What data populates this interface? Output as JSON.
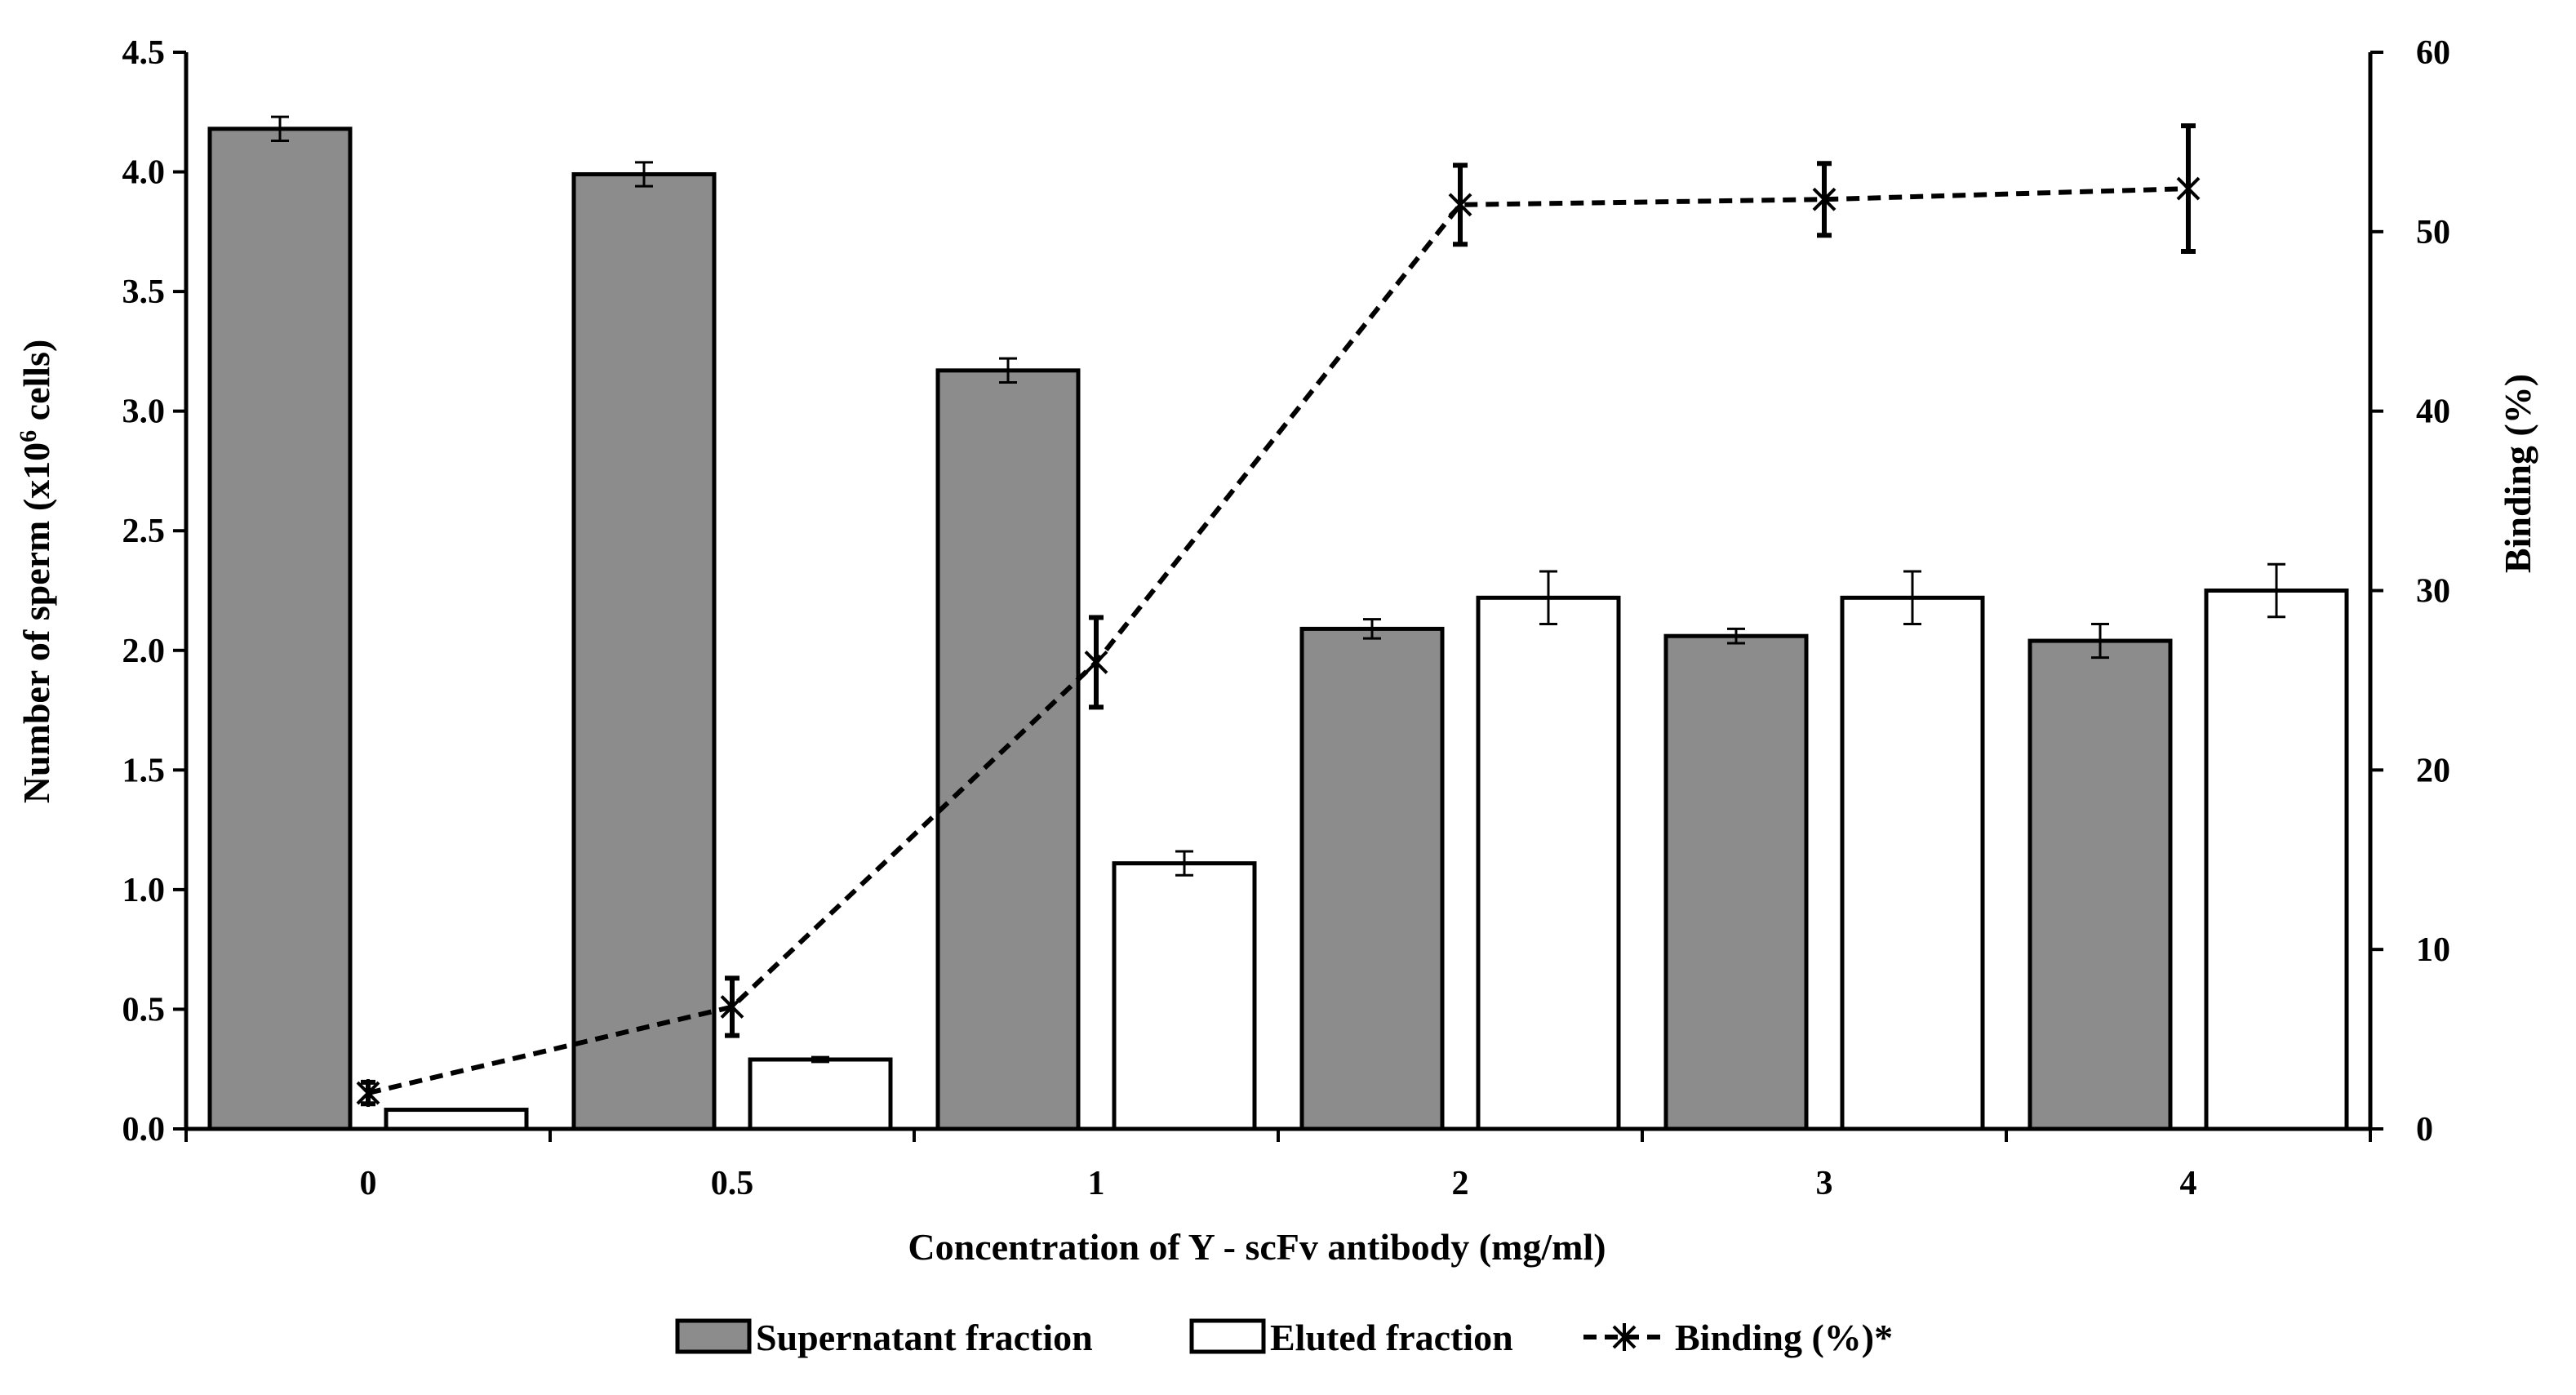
{
  "chart_data": {
    "type": "bar",
    "title": "",
    "xlabel": "Concentration of Y - scFv antibody (mg/ml)",
    "ylabel_left": {
      "prefix": "Number of sperm  (x10",
      "superscript": "6",
      "suffix": " cells)"
    },
    "ylabel_right": "Binding (%)",
    "categories": [
      "0",
      "0.5",
      "1",
      "2",
      "3",
      "4"
    ],
    "ylim_left": [
      0,
      4.5
    ],
    "ylim_right": [
      0,
      60
    ],
    "yticks_left": [
      "0.0",
      "0.5",
      "1.0",
      "1.5",
      "2.0",
      "2.5",
      "3.0",
      "3.5",
      "4.0",
      "4.5"
    ],
    "yticks_right": [
      "0",
      "10",
      "20",
      "30",
      "40",
      "50",
      "60"
    ],
    "grid": false,
    "legend_position": "bottom",
    "series": [
      {
        "name": "Supernatant fraction",
        "kind": "bar",
        "axis": "left",
        "color": "#8c8c8c",
        "values": [
          4.18,
          3.99,
          3.17,
          2.09,
          2.06,
          2.04
        ],
        "errors": [
          0.05,
          0.05,
          0.05,
          0.04,
          0.03,
          0.07
        ]
      },
      {
        "name": "Eluted fraction",
        "kind": "bar",
        "axis": "left",
        "color": "#ffffff",
        "values": [
          0.08,
          0.29,
          1.11,
          2.22,
          2.22,
          2.25
        ],
        "errors": [
          0.0,
          0.01,
          0.05,
          0.11,
          0.11,
          0.11
        ]
      },
      {
        "name": "Binding (%)*",
        "kind": "line",
        "axis": "right",
        "color": "#000000",
        "style": "dashed",
        "marker": "asterisk",
        "values": [
          2.0,
          6.8,
          26.0,
          51.5,
          51.8,
          52.4
        ],
        "errors": [
          0.6,
          1.6,
          2.5,
          2.2,
          2.0,
          3.5
        ]
      }
    ]
  }
}
